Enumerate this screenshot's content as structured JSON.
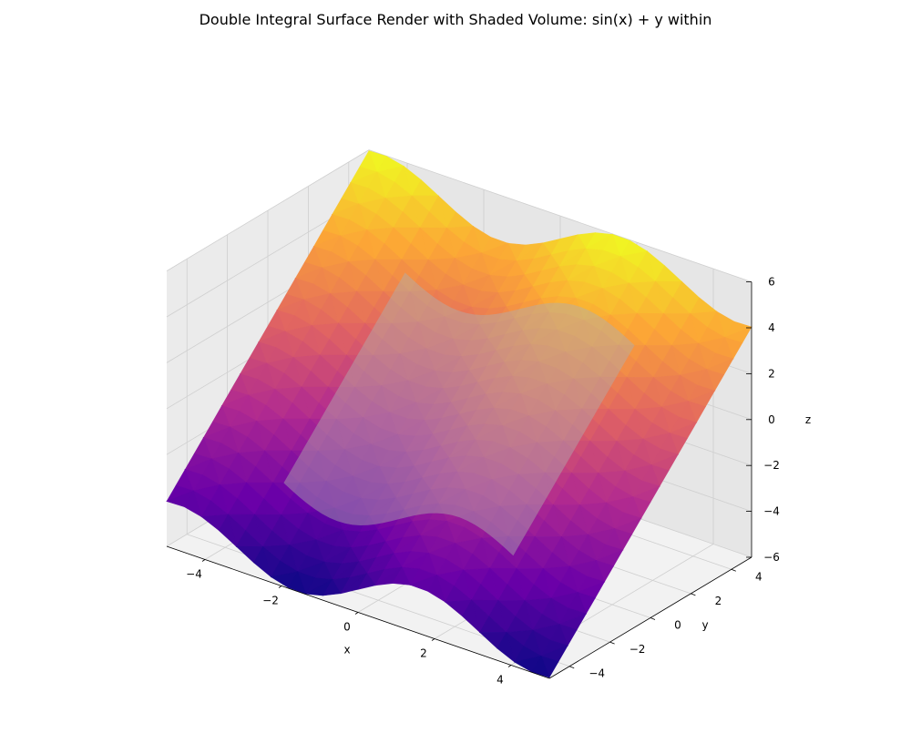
{
  "chart_data": {
    "type": "surface3d",
    "title": "Double Integral Surface Render with Shaded Volume: sin(x) + y within",
    "function": "sin(x) + y",
    "xlabel": "x",
    "ylabel": "y",
    "zlabel": "z",
    "xlim": [
      -5,
      5
    ],
    "ylim": [
      -5,
      5
    ],
    "zlim": [
      -6,
      6
    ],
    "x_ticks": [
      -4,
      -2,
      0,
      2,
      4
    ],
    "y_ticks": [
      -4,
      -2,
      0,
      2,
      4
    ],
    "z_ticks": [
      -6,
      -4,
      -2,
      0,
      2,
      4,
      6
    ],
    "x_tick_labels": [
      "−4",
      "−2",
      "0",
      "2",
      "4"
    ],
    "y_tick_labels": [
      "−4",
      "−2",
      "0",
      "2",
      "4"
    ],
    "z_tick_labels": [
      "−6",
      "−4",
      "−2",
      "0",
      "2",
      "4",
      "6"
    ],
    "surface": {
      "x_range": [
        -5,
        5
      ],
      "y_range": [
        -5,
        5
      ],
      "z_range": [
        -6,
        6
      ],
      "colormap": "plasma",
      "colormap_stops": [
        "#0d0887",
        "#6a00a8",
        "#b12a90",
        "#e16462",
        "#fca636",
        "#f0f921"
      ]
    },
    "shaded_region": {
      "x_range": [
        -3,
        3
      ],
      "y_range": [
        -3,
        3
      ],
      "base_z": 0,
      "color": "#b0b0b0",
      "opacity": 0.5
    },
    "grid": true,
    "pane_colors": [
      "#f2f2f2",
      "#ebebeb",
      "#e6e6e6"
    ]
  }
}
